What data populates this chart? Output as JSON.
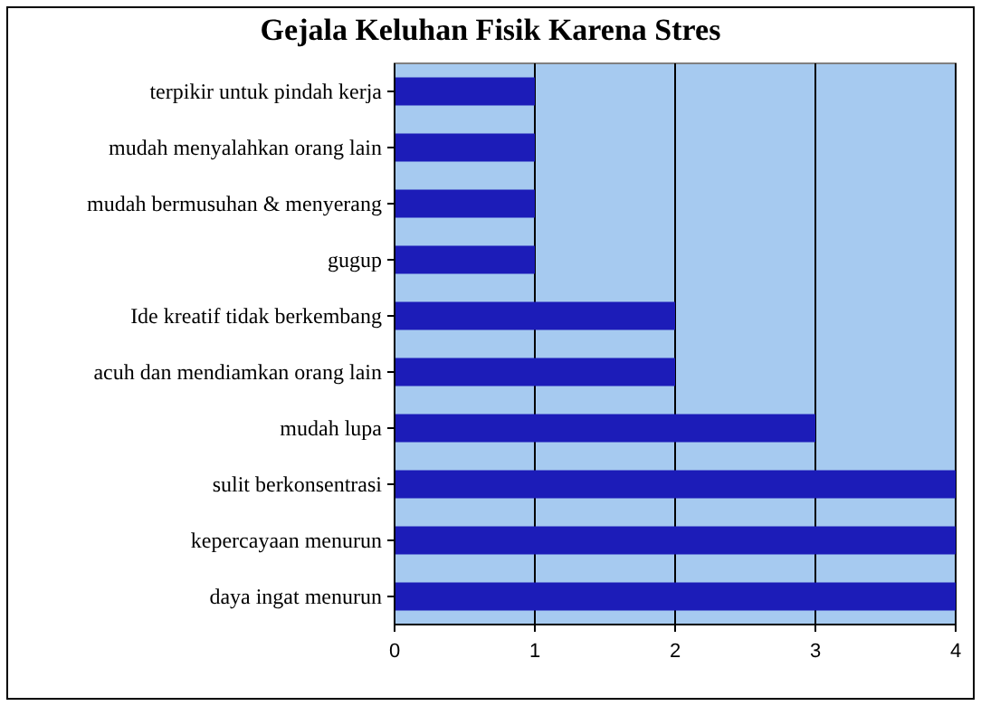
{
  "chart_data": {
    "type": "bar",
    "orientation": "horizontal",
    "title": "Gejala Keluhan Fisik Karena Stres",
    "categories": [
      "terpikir untuk pindah kerja",
      "mudah menyalahkan orang lain",
      "mudah bermusuhan & menyerang",
      "gugup",
      "Ide kreatif tidak berkembang",
      "acuh dan mendiamkan orang lain",
      "mudah lupa",
      "sulit berkonsentrasi",
      "kepercayaan menurun",
      "daya ingat menurun"
    ],
    "values": [
      1,
      1,
      1,
      1,
      2,
      2,
      3,
      4,
      4,
      4
    ],
    "color": "#1c1cb8",
    "xlim": [
      0,
      4
    ],
    "xticks": [
      0,
      1,
      2,
      3,
      4
    ],
    "grid": "x"
  }
}
